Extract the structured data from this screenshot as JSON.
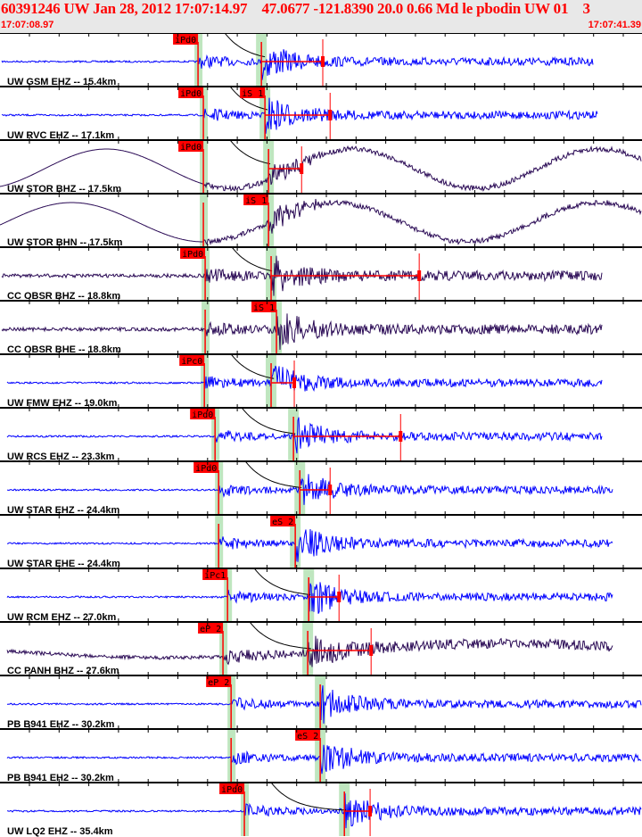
{
  "header": {
    "title": "60391246 UW Jan 28, 2012 17:07:14.97    47.0677 -121.8390 20.0 0.66 Md le pbodin UW 01    3",
    "start_time": "17:07:08.97",
    "end_time": "17:07:41.39"
  },
  "window_seconds": 32.42,
  "colors": {
    "short_period": "#0000ff",
    "broadband": "#2a0a55",
    "pick": "#ff0000",
    "band": "#bfe6bf",
    "header_text": "#ff0000"
  },
  "traces": [
    {
      "label": "UW GSM EHZ -- 15.4km",
      "p": 10.0,
      "s": 13.2,
      "coda": 16.3,
      "picks": [
        "iPd0"
      ],
      "long": false,
      "end": 29.95
    },
    {
      "label": "UW RVC EHZ -- 17.1km",
      "p": 10.27,
      "s": 13.38,
      "coda": 16.67,
      "picks": [
        "iPd0",
        "iS 1"
      ],
      "long": false,
      "end": 30.2
    },
    {
      "label": "UW STOR BHZ -- 17.5km",
      "p": 10.27,
      "s": 13.56,
      "coda": 15.23,
      "picks": [
        "iPd0"
      ],
      "long": true,
      "end": 32.4
    },
    {
      "label": "UW STOR BHN -- 17.5km",
      "p": 10.27,
      "s": 13.56,
      "coda": null,
      "picks": [
        "iS 1"
      ],
      "long": true,
      "end": 32.4
    },
    {
      "label": "CC OBSR BHZ -- 18.8km",
      "p": 10.36,
      "s": 13.69,
      "coda": 21.17,
      "picks": [
        "iPd0"
      ],
      "long": false,
      "bb": true,
      "end": 30.4
    },
    {
      "label": "CC OBSR BHE -- 18.8km",
      "p": 10.36,
      "s": 13.96,
      "coda": null,
      "picks": [
        "iS 1"
      ],
      "long": false,
      "bb": true,
      "end": 30.4
    },
    {
      "label": "UW FMW EHZ -- 19.0km",
      "p": 10.32,
      "s": 13.69,
      "coda": 14.86,
      "picks": [
        "iPc0"
      ],
      "long": false,
      "end": 30.4
    },
    {
      "label": "UW RCS EHZ -- 23.3km",
      "p": 10.86,
      "s": 14.82,
      "coda": 20.23,
      "picks": [
        "iPd0"
      ],
      "long": false,
      "end": 30.4
    },
    {
      "label": "UW STAR EHZ -- 24.4km",
      "p": 11.04,
      "s": 15.14,
      "coda": 16.67,
      "picks": [
        "iPd0"
      ],
      "long": false,
      "end": 30.95
    },
    {
      "label": "UW STAR EHE -- 24.4km",
      "p": 11.04,
      "s": 14.91,
      "coda": null,
      "picks": [
        "eS 2"
      ],
      "long": false,
      "end": 30.95
    },
    {
      "label": "UW RCM EHZ -- 27.0km",
      "p": 11.49,
      "s": 15.59,
      "coda": 17.12,
      "picks": [
        "iPc1"
      ],
      "long": false,
      "end": 30.95
    },
    {
      "label": "CC PANH BHZ -- 27.6km",
      "p": 11.26,
      "s": 15.54,
      "coda": 18.74,
      "picks": [
        "eP 2"
      ],
      "long": false,
      "bb": true,
      "semi": true,
      "end": 30.95
    },
    {
      "label": "PB B941 EHZ -- 30.2km",
      "p": 11.67,
      "s": 16.17,
      "coda": null,
      "picks": [
        "eP 2"
      ],
      "long": false,
      "end": 32.4
    },
    {
      "label": "PB B941 EH2 -- 30.2km",
      "p": 11.67,
      "s": 16.17,
      "coda": null,
      "picks": [
        "eS 2"
      ],
      "long": false,
      "end": 32.4
    },
    {
      "label": "UW LQ2 EHZ -- 35.4km",
      "p": 12.34,
      "s": 17.39,
      "coda": 18.69,
      "picks": [
        "iPd0"
      ],
      "long": false,
      "end": 32.4
    }
  ]
}
